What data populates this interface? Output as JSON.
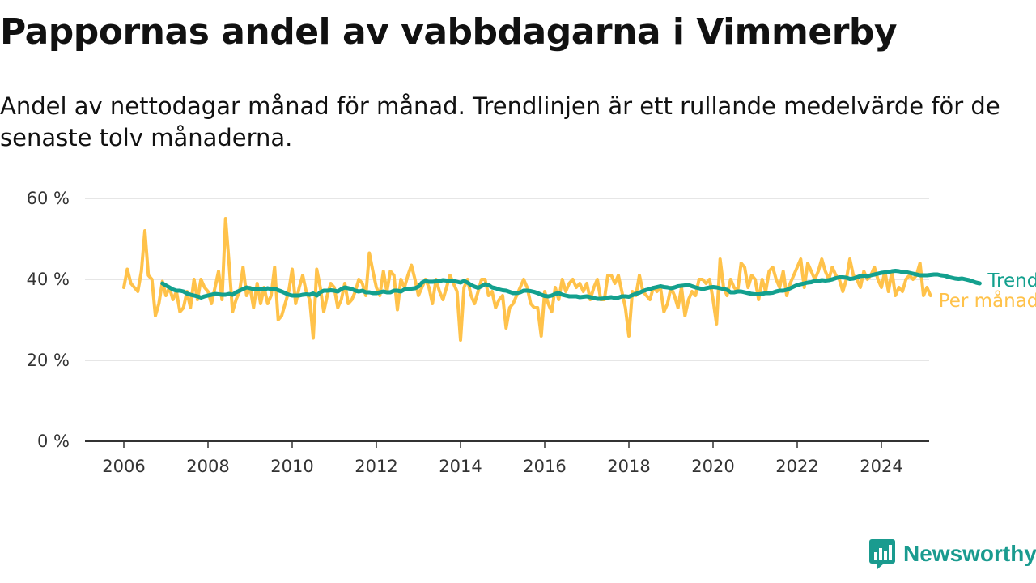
{
  "chart_data": {
    "type": "line",
    "title": "Pappornas andel av vabbdagarna i Vimmerby",
    "subtitle": "Andel av nettodagar månad för månad. Trendlinjen är ett rullande medelvärde för de senaste tolv månaderna.",
    "xlabel": "",
    "ylabel": "",
    "xlim": [
      2005.0,
      2025.25
    ],
    "ylim": [
      0,
      60
    ],
    "x_ticks": [
      "2006",
      "2008",
      "2010",
      "2012",
      "2014",
      "2016",
      "2018",
      "2020",
      "2022",
      "2024"
    ],
    "y_ticks": [
      "0 %",
      "20 %",
      "40 %",
      "60 %"
    ],
    "grid": true,
    "legend": "direct labels at right end of lines",
    "series": [
      {
        "name": "Per månad",
        "color": "#ffc24a",
        "x_start": 2006.0,
        "x_step_months": 1,
        "values": [
          38,
          42.5,
          39,
          38,
          37,
          42,
          52,
          41,
          40,
          31,
          34,
          39.5,
          36,
          38,
          35,
          37,
          32,
          33,
          37,
          33,
          40,
          35,
          40,
          38,
          37,
          34,
          38,
          42,
          35,
          55,
          44,
          32,
          35,
          37,
          43,
          36,
          38,
          33,
          39,
          34,
          38,
          34,
          36,
          43,
          30,
          31,
          34,
          37,
          42.5,
          34,
          38,
          41,
          37,
          35,
          25.5,
          42.5,
          38,
          32,
          36,
          39,
          38,
          33,
          35,
          39,
          34,
          35,
          37,
          40,
          39,
          36,
          46.5,
          42,
          38,
          36,
          42,
          37,
          42,
          41,
          32.5,
          40,
          38,
          41,
          43.5,
          40,
          36,
          38,
          40,
          38,
          34,
          40,
          37,
          35,
          38,
          41,
          39,
          37,
          25,
          38,
          40,
          36,
          34,
          37,
          40,
          40,
          36,
          37,
          33,
          35,
          36,
          28,
          33,
          34,
          36,
          38,
          40,
          38,
          34,
          33,
          33,
          26,
          37,
          34,
          32,
          38,
          35,
          40,
          37,
          39,
          40,
          38,
          39,
          37,
          39,
          35,
          38,
          40,
          35,
          35,
          41,
          41,
          39,
          41,
          37,
          33,
          26,
          37,
          36,
          41,
          37,
          36,
          35,
          38,
          37,
          38,
          32,
          34,
          38,
          36,
          33,
          38,
          31,
          35,
          37,
          36,
          40,
          40,
          39,
          40,
          35,
          29,
          45,
          38,
          36,
          40,
          38,
          37,
          44,
          43,
          38,
          41,
          40,
          35,
          40,
          37,
          42,
          43,
          40,
          38,
          42,
          36,
          39,
          41,
          43,
          45,
          38,
          44,
          42,
          40,
          42,
          45,
          42,
          40,
          43,
          41,
          40,
          37,
          40,
          45,
          41,
          40,
          38,
          42,
          40,
          41,
          43,
          40,
          38,
          42,
          37,
          42,
          36,
          38,
          37,
          40,
          41,
          40,
          41,
          44,
          36,
          38,
          36
        ]
      },
      {
        "name": "Trend",
        "color": "#13a08e",
        "x_start": 2006.917,
        "x_step_months": 1,
        "values": [
          39,
          38.5,
          38,
          37.5,
          37.2,
          37.2,
          37,
          36.5,
          36.2,
          36,
          35.8,
          35.5,
          35.8,
          36,
          36.2,
          36.4,
          36.3,
          36.2,
          36.2,
          36.4,
          36.2,
          36.8,
          37.2,
          37.6,
          38,
          37.8,
          37.6,
          37.6,
          37.7,
          37.5,
          37.8,
          37.6,
          37.7,
          37.3,
          37,
          36.6,
          36.2,
          36,
          36,
          36,
          36.2,
          36.3,
          36.2,
          36.5,
          36,
          36.8,
          37.2,
          37.2,
          37.3,
          37.2,
          37,
          37.6,
          38,
          37.8,
          37.6,
          37.2,
          37,
          37.2,
          36.8,
          36.8,
          36.6,
          36.6,
          36.8,
          37,
          36.8,
          36.8,
          37.2,
          37.2,
          37,
          37.5,
          37.6,
          37.7,
          37.8,
          38.2,
          39.2,
          39.6,
          39.4,
          39.4,
          39.5,
          39.6,
          39.8,
          39.7,
          39.5,
          39.6,
          39.4,
          39.2,
          39.6,
          39.2,
          38.6,
          38.2,
          37.9,
          38.3,
          38.8,
          38.6,
          38,
          37.8,
          37.5,
          37.3,
          37.2,
          36.9,
          36.6,
          36.6,
          36.8,
          37.2,
          37.2,
          37.1,
          36.9,
          36.6,
          36.2,
          35.9,
          35.8,
          36,
          36.4,
          36.6,
          36.2,
          36,
          35.8,
          35.8,
          35.8,
          35.6,
          35.7,
          35.8,
          35.6,
          35.4,
          35.2,
          35.2,
          35.3,
          35.5,
          35.6,
          35.4,
          35.5,
          35.8,
          35.8,
          35.7,
          36.1,
          36.4,
          36.7,
          37.1,
          37.4,
          37.6,
          37.9,
          38.1,
          38.3,
          38.1,
          38,
          37.8,
          38,
          38.3,
          38.4,
          38.5,
          38.6,
          38.3,
          38,
          37.8,
          37.6,
          37.8,
          38,
          38.1,
          38,
          37.8,
          37.6,
          37.4,
          36.8,
          36.8,
          37,
          37,
          36.8,
          36.6,
          36.4,
          36.3,
          36.3,
          36.4,
          36.6,
          36.6,
          36.7,
          37,
          37.2,
          37.2,
          37.4,
          37.8,
          38.2,
          38.6,
          38.8,
          39,
          39.2,
          39.3,
          39.6,
          39.6,
          39.8,
          39.7,
          39.8,
          40,
          40.3,
          40.5,
          40.5,
          40.4,
          40.1,
          40.2,
          40.5,
          40.8,
          40.9,
          40.8,
          41,
          41.2,
          41.4,
          41.6,
          41.7,
          41.8,
          42,
          42.1,
          42,
          41.8,
          41.8,
          41.6,
          41.4,
          41.2,
          41,
          41,
          41,
          41.1,
          41.2,
          41.2,
          41,
          40.9,
          40.6,
          40.4,
          40.2,
          40.1,
          40.2,
          40,
          39.8,
          39.5,
          39.2,
          39
        ]
      }
    ]
  },
  "logo": {
    "text": "Newsworthy",
    "icon": "newsworthy-chart-icon",
    "color": "#1a9b8f"
  }
}
